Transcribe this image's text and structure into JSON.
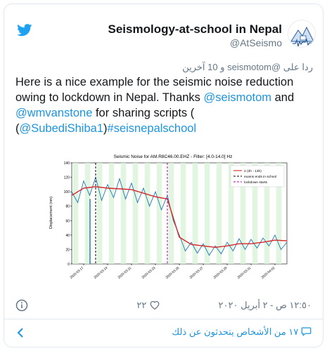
{
  "author": {
    "display_name": "Seismology-at-school in Nepal",
    "handle": "@AtSeismo"
  },
  "reply_context": "ردا على @seismotom و 10 آخرين",
  "tweet": {
    "text_1": "Here is a nice example for the seismic noise reduction owing to lockdown in Nepal. Thanks ",
    "mention_1": "@seismotom",
    "text_2": " and ",
    "mention_2": "@wmvanstone",
    "text_3": " for sharing scripts (",
    "mention_3": "@SubediShiba1",
    "text_4": ")",
    "hashtag": "#seisnepalschool"
  },
  "footer": {
    "likes": "٢٢",
    "timestamp": "١٢:٥٠ ص - ٢ أبريل ٢٠٢٠"
  },
  "conversation_link": "١٧ من الأشخاص يتحدثون عن ذلك",
  "colors": {
    "link": "#1b95e0",
    "twitter_blue": "#1da1f2"
  },
  "chart_data": {
    "type": "line",
    "title": "Seismic Noise for AM.R8C46.00.EHZ - Filter: [4.0-14.0] Hz",
    "ylabel": "Displacement (nm)",
    "ylim": [
      0,
      140
    ],
    "yticks": [
      "0",
      "20",
      "40",
      "60",
      "80",
      "100",
      "120",
      "140"
    ],
    "xticks": [
      "2020-03-17",
      "2020-03-19",
      "2020-03-21",
      "2020-03-23",
      "2020-03-25",
      "2020-03-27",
      "2020-03-29",
      "2020-03-31",
      "2020-04-02"
    ],
    "x_start": "2020-03-16",
    "x_end": "2020-04-03",
    "legend_position": "top-right",
    "legend": [
      "2 (2h - 13h)",
      "exams ends in school",
      "lockdown starts"
    ],
    "series_smooth": {
      "name": "2 (2h - 13h)",
      "color": "#d62728",
      "x": [
        "2020-03-16",
        "2020-03-17",
        "2020-03-18",
        "2020-03-19",
        "2020-03-20",
        "2020-03-21",
        "2020-03-22",
        "2020-03-23",
        "2020-03-24",
        "2020-03-25",
        "2020-03-26",
        "2020-03-27",
        "2020-03-28",
        "2020-03-29",
        "2020-03-30",
        "2020-03-31",
        "2020-04-01",
        "2020-04-02",
        "2020-04-03"
      ],
      "y": [
        95,
        105,
        107,
        105,
        104,
        103,
        98,
        93,
        90,
        37,
        27,
        25,
        23,
        25,
        28,
        28,
        30,
        33,
        32
      ]
    },
    "series_raw": {
      "color": "#1f77b4",
      "x": [
        "2020-03-16",
        "2020-03-16.5",
        "2020-03-17",
        "2020-03-17.5",
        "2020-03-18",
        "2020-03-18.5",
        "2020-03-19",
        "2020-03-19.5",
        "2020-03-20",
        "2020-03-20.5",
        "2020-03-21",
        "2020-03-21.5",
        "2020-03-22",
        "2020-03-22.5",
        "2020-03-23",
        "2020-03-23.5",
        "2020-03-24",
        "2020-03-24.5",
        "2020-03-25",
        "2020-03-25.5",
        "2020-03-26",
        "2020-03-26.5",
        "2020-03-27",
        "2020-03-27.5",
        "2020-03-28",
        "2020-03-28.5",
        "2020-03-29",
        "2020-03-29.5",
        "2020-03-30",
        "2020-03-30.5",
        "2020-03-31",
        "2020-03-31.5",
        "2020-04-01",
        "2020-04-01.5",
        "2020-04-02",
        "2020-04-02.5",
        "2020-04-03"
      ],
      "y": [
        100,
        85,
        115,
        95,
        120,
        88,
        110,
        92,
        118,
        90,
        112,
        85,
        105,
        80,
        100,
        75,
        95,
        60,
        40,
        18,
        30,
        15,
        28,
        12,
        25,
        14,
        30,
        18,
        35,
        20,
        34,
        22,
        36,
        25,
        40,
        20,
        30
      ]
    },
    "exams_end_date": "2020-03-18",
    "lockdown_date": "2020-03-24"
  }
}
